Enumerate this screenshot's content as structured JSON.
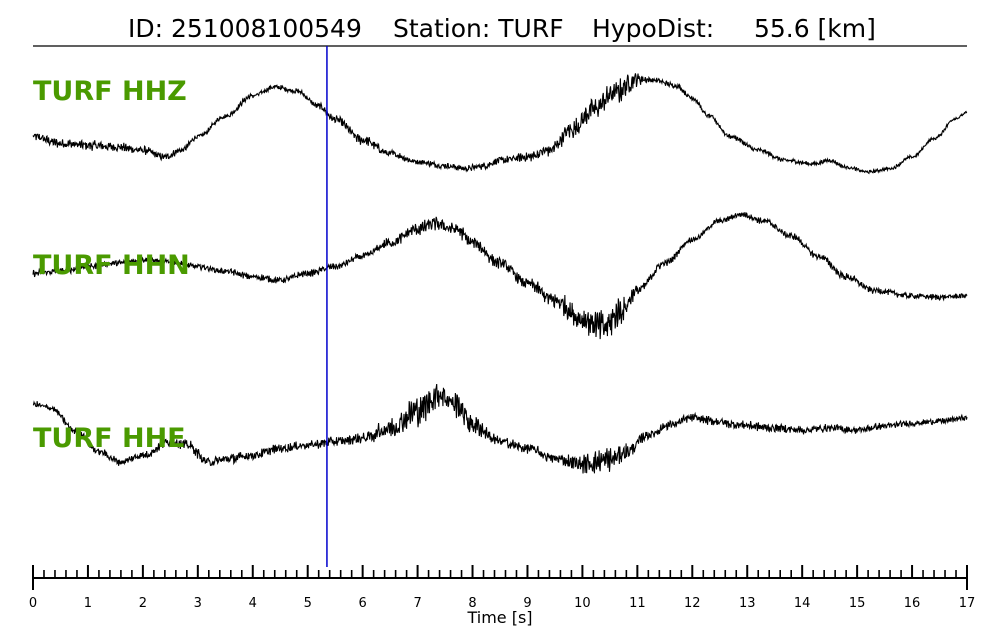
{
  "header": {
    "id": "ID: 251008100549",
    "station": "Station: TURF",
    "hypodist": "HypoDist:     55.6 [km]"
  },
  "chart_data": {
    "type": "line",
    "title": "ID: 251008100549   Station: TURF   HypoDist:     55.6 [km]",
    "xlabel": "Time [s]",
    "ylabel": "",
    "xlim": [
      0,
      17
    ],
    "x_ticks": [
      0,
      1,
      2,
      3,
      4,
      5,
      6,
      7,
      8,
      9,
      10,
      11,
      12,
      13,
      14,
      15,
      16,
      17
    ],
    "minor_tick_step": 0.2,
    "pick_time": 5.35,
    "label_color": "#4a9a00",
    "trace_color": "#000000",
    "pick_color": "#0000cc",
    "series": [
      {
        "name": "TURF HHZ",
        "points": [
          [
            0,
            0.05
          ],
          [
            0.5,
            -0.05
          ],
          [
            1,
            -0.08
          ],
          [
            1.5,
            -0.1
          ],
          [
            2,
            -0.15
          ],
          [
            2.4,
            -0.25
          ],
          [
            2.7,
            -0.15
          ],
          [
            3,
            0.05
          ],
          [
            3.5,
            0.35
          ],
          [
            4,
            0.65
          ],
          [
            4.4,
            0.78
          ],
          [
            4.8,
            0.72
          ],
          [
            5.2,
            0.5
          ],
          [
            5.5,
            0.3
          ],
          [
            6,
            0
          ],
          [
            6.5,
            -0.2
          ],
          [
            7,
            -0.32
          ],
          [
            7.5,
            -0.38
          ],
          [
            7.9,
            -0.42
          ],
          [
            8.2,
            -0.38
          ],
          [
            8.5,
            -0.3
          ],
          [
            9,
            -0.25
          ],
          [
            9.4,
            -0.15
          ],
          [
            9.8,
            0.15
          ],
          [
            10.2,
            0.45
          ],
          [
            10.6,
            0.7
          ],
          [
            11,
            0.9
          ],
          [
            11.3,
            0.88
          ],
          [
            11.7,
            0.8
          ],
          [
            12,
            0.62
          ],
          [
            12.3,
            0.35
          ],
          [
            12.7,
            0.05
          ],
          [
            13.2,
            -0.15
          ],
          [
            13.7,
            -0.3
          ],
          [
            14.2,
            -0.35
          ],
          [
            14.5,
            -0.3
          ],
          [
            14.8,
            -0.4
          ],
          [
            15.2,
            -0.47
          ],
          [
            15.6,
            -0.42
          ],
          [
            16,
            -0.25
          ],
          [
            16.4,
            0.02
          ],
          [
            16.8,
            0.32
          ],
          [
            17,
            0.4
          ]
        ],
        "noise": [
          [
            0,
            0.05
          ],
          [
            1,
            0.06
          ],
          [
            2,
            0.05
          ],
          [
            3,
            0.03
          ],
          [
            5,
            0.03
          ],
          [
            6,
            0.06
          ],
          [
            7,
            0.03
          ],
          [
            9,
            0.05
          ],
          [
            10,
            0.12
          ],
          [
            10.8,
            0.14
          ],
          [
            11.2,
            0.03
          ],
          [
            13,
            0.03
          ],
          [
            15,
            0.02
          ],
          [
            17,
            0.02
          ]
        ]
      },
      {
        "name": "TURF HHN",
        "points": [
          [
            0,
            -0.05
          ],
          [
            0.5,
            -0.02
          ],
          [
            1,
            0.05
          ],
          [
            1.5,
            0.1
          ],
          [
            2,
            0.15
          ],
          [
            2.5,
            0.12
          ],
          [
            3,
            0.05
          ],
          [
            3.5,
            -0.02
          ],
          [
            4,
            -0.1
          ],
          [
            4.5,
            -0.15
          ],
          [
            5,
            -0.05
          ],
          [
            5.5,
            0.05
          ],
          [
            6,
            0.2
          ],
          [
            6.5,
            0.4
          ],
          [
            7,
            0.6
          ],
          [
            7.3,
            0.68
          ],
          [
            7.7,
            0.6
          ],
          [
            8,
            0.4
          ],
          [
            8.5,
            0.1
          ],
          [
            9,
            -0.2
          ],
          [
            9.5,
            -0.45
          ],
          [
            10,
            -0.72
          ],
          [
            10.4,
            -0.85
          ],
          [
            10.7,
            -0.6
          ],
          [
            11,
            -0.3
          ],
          [
            11.5,
            0.1
          ],
          [
            12,
            0.45
          ],
          [
            12.5,
            0.72
          ],
          [
            12.9,
            0.82
          ],
          [
            13.3,
            0.72
          ],
          [
            13.8,
            0.5
          ],
          [
            14.3,
            0.2
          ],
          [
            14.8,
            -0.1
          ],
          [
            15.3,
            -0.3
          ],
          [
            16,
            -0.38
          ],
          [
            16.5,
            -0.4
          ],
          [
            17,
            -0.38
          ]
        ],
        "noise": [
          [
            0,
            0.04
          ],
          [
            2,
            0.03
          ],
          [
            4,
            0.04
          ],
          [
            6,
            0.04
          ],
          [
            7,
            0.08
          ],
          [
            8,
            0.08
          ],
          [
            9,
            0.06
          ],
          [
            10,
            0.15
          ],
          [
            10.5,
            0.22
          ],
          [
            11,
            0.06
          ],
          [
            12,
            0.03
          ],
          [
            14,
            0.04
          ],
          [
            15,
            0.04
          ],
          [
            17,
            0.03
          ]
        ]
      },
      {
        "name": "TURF HHE",
        "points": [
          [
            0,
            0.6
          ],
          [
            0.3,
            0.55
          ],
          [
            0.8,
            0.2
          ],
          [
            1.2,
            -0.1
          ],
          [
            1.6,
            -0.25
          ],
          [
            2,
            -0.15
          ],
          [
            2.5,
            0.05
          ],
          [
            2.8,
            0
          ],
          [
            3.2,
            -0.25
          ],
          [
            3.6,
            -0.2
          ],
          [
            4,
            -0.15
          ],
          [
            4.5,
            -0.05
          ],
          [
            5,
            0
          ],
          [
            5.5,
            0.05
          ],
          [
            6,
            0.1
          ],
          [
            6.5,
            0.25
          ],
          [
            7,
            0.5
          ],
          [
            7.4,
            0.75
          ],
          [
            7.7,
            0.6
          ],
          [
            8,
            0.3
          ],
          [
            8.5,
            0.05
          ],
          [
            9,
            -0.05
          ],
          [
            9.5,
            -0.2
          ],
          [
            10,
            -0.28
          ],
          [
            10.5,
            -0.22
          ],
          [
            10.8,
            -0.1
          ],
          [
            11.2,
            0.15
          ],
          [
            11.6,
            0.3
          ],
          [
            12,
            0.4
          ],
          [
            12.4,
            0.35
          ],
          [
            12.8,
            0.3
          ],
          [
            13.5,
            0.25
          ],
          [
            14,
            0.22
          ],
          [
            14.5,
            0.25
          ],
          [
            15,
            0.22
          ],
          [
            15.5,
            0.28
          ],
          [
            16,
            0.32
          ],
          [
            16.5,
            0.35
          ],
          [
            17,
            0.4
          ]
        ],
        "noise": [
          [
            0,
            0.04
          ],
          [
            1,
            0.04
          ],
          [
            3,
            0.06
          ],
          [
            5,
            0.05
          ],
          [
            6,
            0.06
          ],
          [
            7,
            0.18
          ],
          [
            7.8,
            0.15
          ],
          [
            8.5,
            0.06
          ],
          [
            9.5,
            0.06
          ],
          [
            10.5,
            0.15
          ],
          [
            11,
            0.06
          ],
          [
            12,
            0.05
          ],
          [
            14,
            0.05
          ],
          [
            17,
            0.03
          ]
        ]
      }
    ]
  }
}
